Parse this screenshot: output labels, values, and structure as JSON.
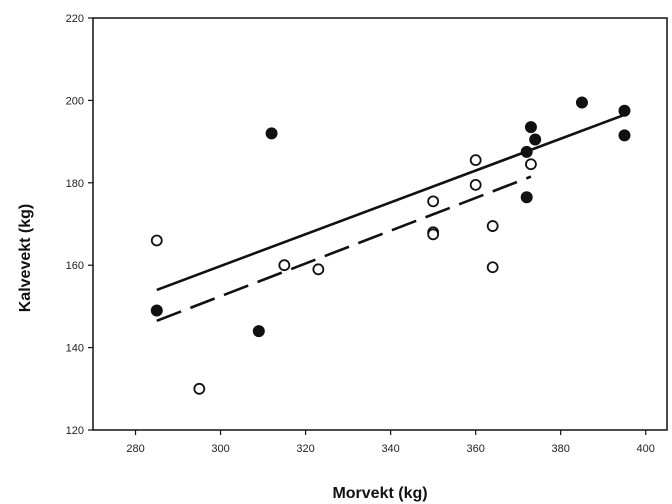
{
  "chart_data": {
    "type": "scatter",
    "title": "",
    "xlabel": "Morvekt (kg)",
    "ylabel": "Kalvevekt (kg)",
    "xlim": [
      270,
      405
    ],
    "ylim": [
      120,
      220
    ],
    "xticks": [
      280,
      300,
      320,
      340,
      360,
      380,
      400
    ],
    "yticks": [
      120,
      140,
      160,
      180,
      200,
      220
    ],
    "grid": false,
    "series": [
      {
        "marker": "filled-circle",
        "points": [
          {
            "x": 285,
            "y": 149
          },
          {
            "x": 309,
            "y": 144
          },
          {
            "x": 312,
            "y": 192
          },
          {
            "x": 372,
            "y": 176.5
          },
          {
            "x": 372,
            "y": 187.5
          },
          {
            "x": 373,
            "y": 193.5
          },
          {
            "x": 374,
            "y": 190.5
          },
          {
            "x": 385,
            "y": 199.5
          },
          {
            "x": 395,
            "y": 197.5
          },
          {
            "x": 395,
            "y": 191.5
          }
        ],
        "fit_line": {
          "style": "solid",
          "x": [
            285,
            395
          ],
          "y": [
            154,
            196.5
          ]
        }
      },
      {
        "marker": "open-circle",
        "points": [
          {
            "x": 285,
            "y": 166
          },
          {
            "x": 295,
            "y": 130
          },
          {
            "x": 315,
            "y": 160
          },
          {
            "x": 323,
            "y": 159
          },
          {
            "x": 350,
            "y": 175.5
          },
          {
            "x": 350,
            "y": 168
          },
          {
            "x": 350,
            "y": 167.5
          },
          {
            "x": 360,
            "y": 185.5
          },
          {
            "x": 360,
            "y": 179.5
          },
          {
            "x": 364,
            "y": 169.5
          },
          {
            "x": 364,
            "y": 159.5
          },
          {
            "x": 373,
            "y": 184.5
          }
        ],
        "fit_line": {
          "style": "dashed",
          "x": [
            285,
            373
          ],
          "y": [
            146.5,
            181.5
          ]
        }
      }
    ]
  }
}
